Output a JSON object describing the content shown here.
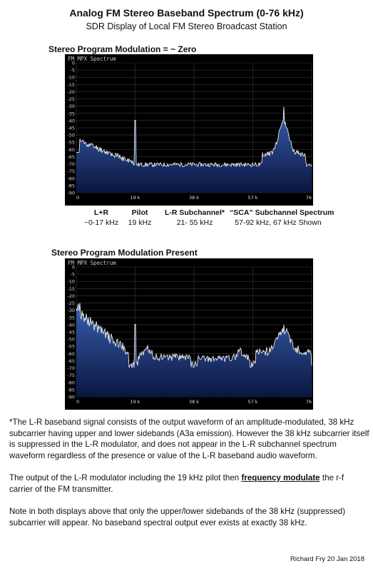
{
  "header": {
    "title": "Analog FM Stereo Baseband Spectrum (0-76 kHz)",
    "subtitle": "SDR Display of Local FM Stereo Broadcast Station"
  },
  "panels": [
    {
      "heading": "Stereo Program Modulation = ~ Zero",
      "window_label": "FM MPX Spectrum",
      "mode": "zero"
    },
    {
      "heading": "Stereo Program Modulation Present",
      "window_label": "FM MPX Spectrum",
      "mode": "present"
    }
  ],
  "axes": {
    "y_ticks": [
      "0",
      "-5",
      "-10",
      "-15",
      "-20",
      "-25",
      "-30",
      "-35",
      "-40",
      "-45",
      "-50",
      "-55",
      "-60",
      "-65",
      "-70",
      "-75",
      "-80",
      "-85",
      "-90"
    ],
    "x_ticks": [
      "0",
      "19 k",
      "38 k",
      "57 k",
      "76"
    ]
  },
  "band_labels": [
    {
      "name": "L+R",
      "range": "~0-17 kHz"
    },
    {
      "name": "Pilot",
      "range": "19 kHz"
    },
    {
      "name": "L-R Subchannel*",
      "range": "21- 55 kHz"
    },
    {
      "name": "“SCA” Subchannel Spectrum",
      "range": "57-92 kHz, 67 kHz Shown"
    }
  ],
  "notes": {
    "p1": "*The L-R baseband signal consists of the output waveform of an amplitude-modulated, 38 kHz subcarrier having upper and lower sidebands (A3a emission).     However the 38 kHz subcarrier itself is suppressed in the L-R modulator, and does not appear in the L-R subchannel spectrum waveform regardless of the presence or value of the L-R baseband audio waveform.",
    "p2_before": "The output of the L-R modulator including the 19 kHz pilot then ",
    "p2_link": "frequency modulate",
    "p2_after": " the r-f carrier of the FM transmitter.",
    "p3": "Note in both displays above that only the upper/lower sidebands of the 38 kHz (suppressed) subcarrier will appear.    No baseband spectral output ever exists at exactly 38 kHz."
  },
  "credit": "Richard Fry 20 Jan 2018",
  "colors": {
    "background": "#000000",
    "grid": "#3a3a3a",
    "trace_fill_top": "#3a5fb0",
    "trace_fill_bottom": "#0a1640",
    "trace_line": "#ffffff"
  }
}
